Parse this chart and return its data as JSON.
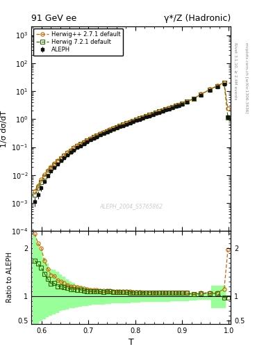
{
  "title_left": "91 GeV ee",
  "title_right": "γ*/Z (Hadronic)",
  "ylabel_main": "1/σ dσ/dT",
  "ylabel_ratio": "Ratio to ALEPH",
  "xlabel": "T",
  "watermark": "ALEPH_2004_S5765862",
  "right_label_top": "Rivet 3.1.10, ≥ 2.4M events",
  "right_label_bot": "mcplots.cern.ch [arXiv:1306.3436]",
  "T_data": [
    0.585,
    0.592,
    0.599,
    0.606,
    0.613,
    0.62,
    0.627,
    0.634,
    0.641,
    0.648,
    0.655,
    0.662,
    0.669,
    0.676,
    0.683,
    0.69,
    0.697,
    0.704,
    0.711,
    0.718,
    0.725,
    0.732,
    0.739,
    0.746,
    0.753,
    0.76,
    0.767,
    0.774,
    0.781,
    0.788,
    0.795,
    0.802,
    0.809,
    0.816,
    0.823,
    0.83,
    0.837,
    0.844,
    0.851,
    0.858,
    0.865,
    0.872,
    0.879,
    0.886,
    0.893,
    0.9,
    0.91,
    0.925,
    0.94,
    0.96,
    0.975,
    0.99,
    0.998
  ],
  "aleph_y": [
    0.00115,
    0.00205,
    0.0035,
    0.006,
    0.0095,
    0.014,
    0.0185,
    0.025,
    0.032,
    0.041,
    0.052,
    0.065,
    0.079,
    0.095,
    0.112,
    0.132,
    0.154,
    0.178,
    0.205,
    0.234,
    0.266,
    0.301,
    0.338,
    0.379,
    0.425,
    0.474,
    0.528,
    0.587,
    0.651,
    0.722,
    0.799,
    0.884,
    0.977,
    1.079,
    1.189,
    1.31,
    1.44,
    1.583,
    1.74,
    1.91,
    2.1,
    2.305,
    2.53,
    2.78,
    3.06,
    3.37,
    3.9,
    5.2,
    7.2,
    10.8,
    14.5,
    17.5,
    1.2
  ],
  "hpp_y": [
    0.00265,
    0.0043,
    0.007,
    0.0104,
    0.0149,
    0.0201,
    0.0262,
    0.0332,
    0.042,
    0.0522,
    0.0645,
    0.0788,
    0.0952,
    0.113,
    0.132,
    0.153,
    0.177,
    0.203,
    0.232,
    0.264,
    0.298,
    0.336,
    0.378,
    0.423,
    0.472,
    0.526,
    0.584,
    0.648,
    0.717,
    0.792,
    0.874,
    0.964,
    1.062,
    1.169,
    1.285,
    1.412,
    1.552,
    1.703,
    1.869,
    2.051,
    2.251,
    2.47,
    2.71,
    2.976,
    3.271,
    3.595,
    4.19,
    5.42,
    7.75,
    11.6,
    15.6,
    20.2,
    2.35
  ],
  "h721_y": [
    0.002,
    0.00345,
    0.0056,
    0.0088,
    0.0129,
    0.0177,
    0.0235,
    0.0303,
    0.0387,
    0.0487,
    0.0608,
    0.0748,
    0.0908,
    0.1083,
    0.1274,
    0.1482,
    0.1712,
    0.1973,
    0.2261,
    0.2575,
    0.2914,
    0.3291,
    0.3703,
    0.4152,
    0.4642,
    0.5173,
    0.575,
    0.6382,
    0.7069,
    0.7822,
    0.8644,
    0.9543,
    1.052,
    1.159,
    1.276,
    1.403,
    1.543,
    1.694,
    1.86,
    2.041,
    2.241,
    2.461,
    2.703,
    2.971,
    3.267,
    3.596,
    4.178,
    5.38,
    7.65,
    11.4,
    15.3,
    19.5,
    1.17
  ],
  "aleph_err_lo": [
    0.0004,
    0.0006,
    0.0008,
    0.001,
    0.0013,
    0.0015,
    0.0018,
    0.002,
    0.0025,
    0.0028,
    0.0033,
    0.0038,
    0.0043,
    0.0049,
    0.0055,
    0.0062,
    0.0069,
    0.0076,
    0.0084,
    0.0092,
    0.0101,
    0.011,
    0.012,
    0.0131,
    0.0143,
    0.0157,
    0.0172,
    0.0188,
    0.0206,
    0.0226,
    0.0248,
    0.0273,
    0.0299,
    0.0328,
    0.036,
    0.0395,
    0.0434,
    0.0476,
    0.0523,
    0.0575,
    0.0633,
    0.0697,
    0.0768,
    0.0846,
    0.0932,
    0.1028,
    0.12,
    0.15,
    0.2,
    0.3,
    0.4,
    0.5,
    0.12
  ],
  "hpp_ratio": [
    2.3,
    2.1,
    2.0,
    1.73,
    1.57,
    1.44,
    1.42,
    1.33,
    1.31,
    1.27,
    1.24,
    1.21,
    1.21,
    1.19,
    1.18,
    1.16,
    1.15,
    1.14,
    1.13,
    1.13,
    1.12,
    1.12,
    1.12,
    1.12,
    1.11,
    1.11,
    1.11,
    1.1,
    1.1,
    1.1,
    1.09,
    1.09,
    1.09,
    1.08,
    1.08,
    1.08,
    1.08,
    1.08,
    1.07,
    1.07,
    1.07,
    1.07,
    1.07,
    1.07,
    1.07,
    1.07,
    1.07,
    1.04,
    1.08,
    1.07,
    1.08,
    1.15,
    1.96
  ],
  "h721_ratio": [
    1.74,
    1.68,
    1.6,
    1.47,
    1.36,
    1.26,
    1.27,
    1.21,
    1.21,
    1.19,
    1.17,
    1.15,
    1.15,
    1.14,
    1.14,
    1.12,
    1.11,
    1.11,
    1.1,
    1.1,
    1.1,
    1.09,
    1.1,
    1.1,
    1.09,
    1.09,
    1.09,
    1.09,
    1.09,
    1.08,
    1.08,
    1.08,
    1.08,
    1.07,
    1.07,
    1.07,
    1.07,
    1.07,
    1.07,
    1.07,
    1.07,
    1.07,
    1.07,
    1.07,
    1.07,
    1.07,
    1.07,
    1.04,
    1.06,
    1.06,
    1.06,
    0.97,
    0.98
  ],
  "T_bins": [
    0.58,
    0.586,
    0.593,
    0.6,
    0.607,
    0.614,
    0.621,
    0.628,
    0.635,
    0.642,
    0.649,
    0.656,
    0.663,
    0.67,
    0.677,
    0.684,
    0.691,
    0.698,
    0.705,
    0.712,
    0.719,
    0.726,
    0.733,
    0.74,
    0.747,
    0.754,
    0.761,
    0.768,
    0.775,
    0.782,
    0.789,
    0.796,
    0.803,
    0.81,
    0.817,
    0.824,
    0.831,
    0.838,
    0.845,
    0.852,
    0.859,
    0.866,
    0.873,
    0.88,
    0.887,
    0.894,
    0.901,
    0.914,
    0.93,
    0.945,
    0.962,
    0.977,
    0.992,
    1.002
  ],
  "band_yellow_lo": [
    0.65,
    0.7,
    0.72,
    0.74,
    0.76,
    0.77,
    0.78,
    0.79,
    0.8,
    0.81,
    0.82,
    0.83,
    0.84,
    0.84,
    0.85,
    0.85,
    0.86,
    0.86,
    0.87,
    0.87,
    0.87,
    0.88,
    0.88,
    0.88,
    0.88,
    0.89,
    0.89,
    0.89,
    0.9,
    0.9,
    0.9,
    0.9,
    0.91,
    0.91,
    0.91,
    0.91,
    0.92,
    0.92,
    0.92,
    0.92,
    0.92,
    0.93,
    0.93,
    0.93,
    0.93,
    0.93,
    0.94,
    0.94,
    0.95,
    0.95,
    0.8,
    0.8,
    0.8
  ],
  "band_yellow_hi": [
    1.35,
    1.3,
    1.28,
    1.26,
    1.24,
    1.23,
    1.22,
    1.21,
    1.2,
    1.19,
    1.18,
    1.17,
    1.16,
    1.16,
    1.15,
    1.15,
    1.14,
    1.14,
    1.13,
    1.13,
    1.13,
    1.12,
    1.12,
    1.12,
    1.12,
    1.11,
    1.11,
    1.11,
    1.1,
    1.1,
    1.1,
    1.1,
    1.09,
    1.09,
    1.09,
    1.09,
    1.08,
    1.08,
    1.08,
    1.08,
    1.08,
    1.07,
    1.07,
    1.07,
    1.07,
    1.07,
    1.06,
    1.06,
    1.05,
    1.05,
    1.2,
    1.2,
    1.2
  ],
  "band_green_lo": [
    0.4,
    0.45,
    0.5,
    0.55,
    0.58,
    0.62,
    0.65,
    0.68,
    0.71,
    0.73,
    0.75,
    0.77,
    0.78,
    0.79,
    0.8,
    0.81,
    0.82,
    0.83,
    0.84,
    0.84,
    0.85,
    0.85,
    0.86,
    0.86,
    0.87,
    0.87,
    0.87,
    0.88,
    0.88,
    0.88,
    0.89,
    0.89,
    0.89,
    0.9,
    0.9,
    0.9,
    0.9,
    0.91,
    0.91,
    0.91,
    0.91,
    0.91,
    0.92,
    0.92,
    0.92,
    0.92,
    0.92,
    0.93,
    0.94,
    0.94,
    0.78,
    0.78,
    0.78
  ],
  "band_green_hi": [
    2.25,
    2.1,
    1.95,
    1.8,
    1.68,
    1.57,
    1.55,
    1.5,
    1.45,
    1.4,
    1.35,
    1.3,
    1.27,
    1.24,
    1.22,
    1.2,
    1.18,
    1.17,
    1.15,
    1.14,
    1.13,
    1.12,
    1.12,
    1.12,
    1.11,
    1.11,
    1.11,
    1.1,
    1.1,
    1.1,
    1.09,
    1.09,
    1.09,
    1.08,
    1.08,
    1.08,
    1.08,
    1.08,
    1.07,
    1.07,
    1.07,
    1.07,
    1.07,
    1.07,
    1.07,
    1.07,
    1.07,
    1.07,
    1.06,
    1.06,
    1.22,
    1.22,
    1.22
  ],
  "color_aleph": "#111111",
  "color_hpp": "#cc6600",
  "color_h721": "#336600",
  "color_yellow": "#ffff99",
  "color_green_band": "#99ff99",
  "xlim": [
    0.578,
    1.004
  ],
  "ylim_ratio": [
    0.43,
    2.35
  ]
}
